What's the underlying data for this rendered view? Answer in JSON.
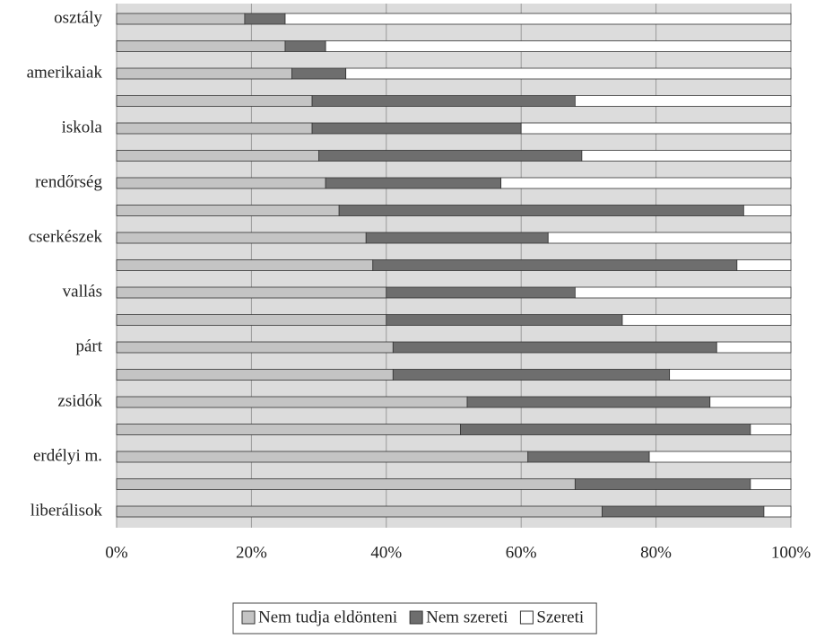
{
  "chart_data": {
    "type": "stacked-barh",
    "categories": [
      "osztály",
      null,
      "amerikaiak",
      null,
      "iskola",
      null,
      "rendőrség",
      null,
      "cserkészek",
      null,
      "vallás",
      null,
      "párt",
      null,
      "zsidók",
      null,
      "erdélyi m.",
      null,
      "liberálisok"
    ],
    "series": [
      {
        "name": "Nem tudja eldönteni",
        "color": "#c4c4c4",
        "values": [
          19,
          25,
          26,
          29,
          29,
          30,
          31,
          33,
          37,
          38,
          40,
          40,
          41,
          41,
          52,
          51,
          61,
          68,
          72
        ]
      },
      {
        "name": "Nem szereti",
        "color": "#6e6e6e",
        "values": [
          6,
          6,
          8,
          39,
          31,
          39,
          26,
          60,
          27,
          54,
          28,
          35,
          48,
          41,
          36,
          43,
          18,
          26,
          24
        ]
      },
      {
        "name": "Szereti",
        "color": "#ffffff",
        "values": [
          75,
          69,
          66,
          32,
          40,
          31,
          43,
          7,
          36,
          8,
          32,
          25,
          11,
          18,
          12,
          6,
          21,
          6,
          4
        ]
      }
    ],
    "xlim": [
      0,
      100
    ],
    "xticks": [
      {
        "value": 0,
        "label": "0%"
      },
      {
        "value": 20,
        "label": "20%"
      },
      {
        "value": 40,
        "label": "40%"
      },
      {
        "value": 60,
        "label": "60%"
      },
      {
        "value": 80,
        "label": "80%"
      },
      {
        "value": 100,
        "label": "100%"
      }
    ],
    "grid": true
  }
}
